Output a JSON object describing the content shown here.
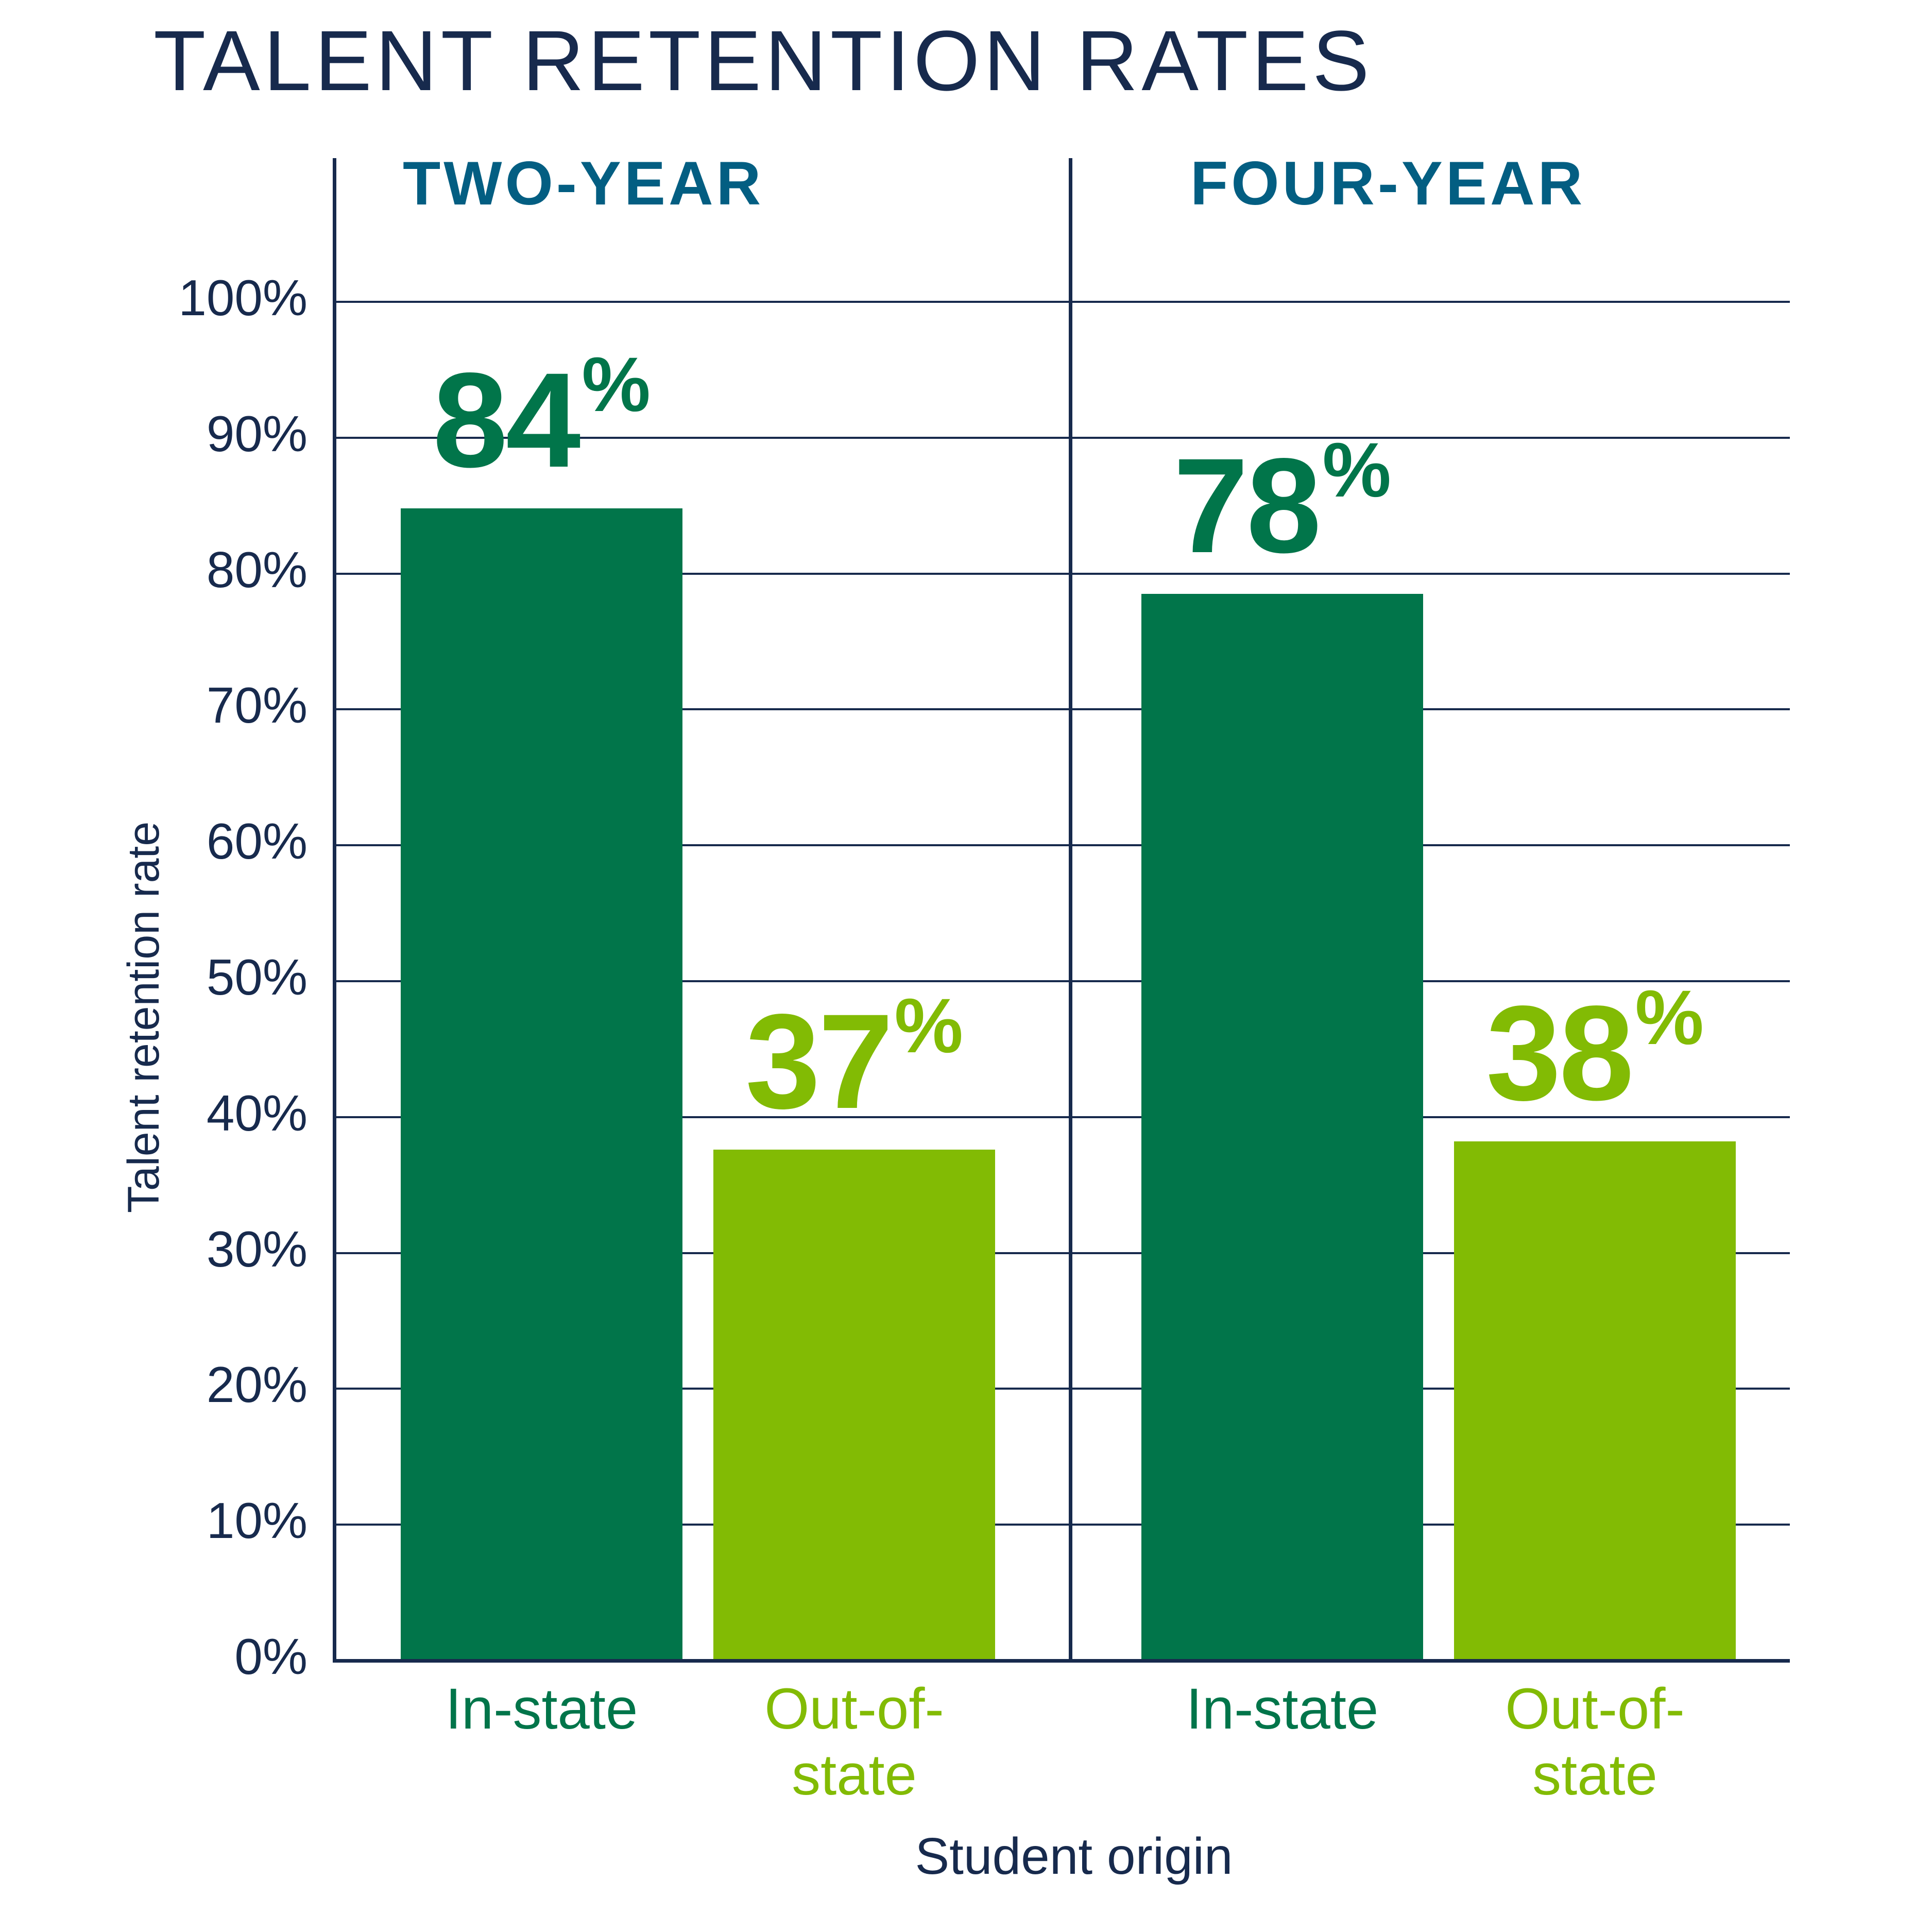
{
  "chart_data": {
    "type": "bar",
    "title": "TALENT RETENTION RATES",
    "xlabel": "Student origin",
    "ylabel": "Talent retention rate",
    "ylim": [
      0,
      100
    ],
    "yticks": [
      "0%",
      "10%",
      "20%",
      "30%",
      "40%",
      "50%",
      "60%",
      "70%",
      "80%",
      "90%",
      "100%"
    ],
    "grid": true,
    "legend": null,
    "panels": [
      {
        "title": "TWO-YEAR",
        "categories": [
          "In-state",
          "Out-of-state"
        ],
        "values": [
          84,
          37
        ],
        "labels": [
          "84",
          "37"
        ]
      },
      {
        "title": "FOUR-YEAR",
        "categories": [
          "In-state",
          "Out-of-state"
        ],
        "values": [
          78,
          38
        ],
        "labels": [
          "78",
          "38"
        ]
      }
    ]
  },
  "header": {
    "title": "TALENT RETENTION RATES"
  },
  "panels": [
    {
      "title": "TWO-YEAR"
    },
    {
      "title": "FOUR-YEAR"
    }
  ],
  "axis": {
    "y_title": "Talent retention rate",
    "x_title": "Student origin",
    "ticks": [
      "0%",
      "10%",
      "20%",
      "30%",
      "40%",
      "50%",
      "60%",
      "70%",
      "80%",
      "90%",
      "100%"
    ]
  },
  "bars": [
    {
      "value": "84",
      "pct": "%",
      "cat_line1": "In-state",
      "cat_line2": "",
      "color": "#01754A",
      "height_pct": 84.8
    },
    {
      "value": "37",
      "pct": "%",
      "cat_line1": "Out-of-",
      "cat_line2": "state",
      "color": "#82BB04",
      "height_pct": 37.6
    },
    {
      "value": "78",
      "pct": "%",
      "cat_line1": "In-state",
      "cat_line2": "",
      "color": "#01754A",
      "height_pct": 78.5
    },
    {
      "value": "38",
      "pct": "%",
      "cat_line1": "Out-of-",
      "cat_line2": "state",
      "color": "#82BB04",
      "height_pct": 38.2
    }
  ],
  "colors": {
    "in_state": "#01754A",
    "out_of_state": "#82BB04",
    "navy": "#172A4D",
    "panel_title": "#035E82"
  }
}
